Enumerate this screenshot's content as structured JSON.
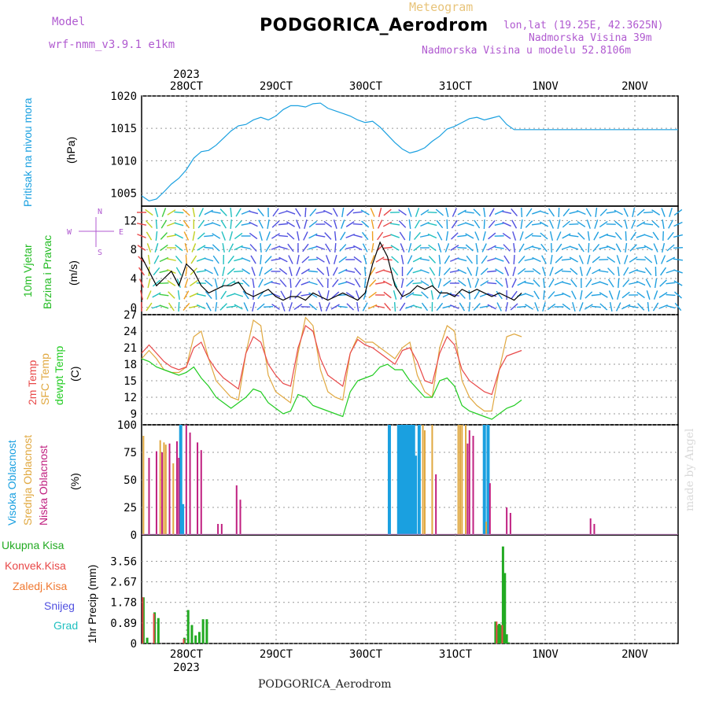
{
  "header": {
    "title": "PODGORICA_Aerodrom",
    "meteogram_label": "Meteogram",
    "model_label": "Model",
    "model_name": "wrf-nmm_v3.9.1 e1km",
    "lonlat": "lon,lat (19.25E, 42.3625N)",
    "elevation": "Nadmorska Visina 39m",
    "model_elevation": "Nadmorska Visina u modelu 52.8106m"
  },
  "footer": {
    "station": "PODGORICA_Aerodrom",
    "credit": "made by Angel"
  },
  "axis": {
    "year": "2023",
    "dates": [
      "28OCT",
      "29OCT",
      "30OCT",
      "31OCT",
      "1NOV",
      "2NOV"
    ]
  },
  "panels": {
    "pressure": {
      "label": "Pritisak na nivou mora",
      "unit": "(hPa)",
      "color": "#1aa0e0"
    },
    "wind": {
      "label1": "10m Vjetar",
      "label2": "Brzina i Pravac",
      "unit": "(m/s)",
      "color": "#22bb22",
      "compass": {
        "n": "N",
        "s": "S",
        "e": "E",
        "w": "W"
      }
    },
    "temp": {
      "label_t2": "2m Temp",
      "label_sfc": "SFC Temp",
      "label_dew": "dewpt Temp",
      "unit": "(C)",
      "colors": {
        "t2": "#e84848",
        "sfc": "#e0a840",
        "dew": "#22cc22"
      }
    },
    "cloud": {
      "label_high": "Visoka Oblacnost",
      "label_mid": "Srednja Oblacnost",
      "label_low": "Niska Oblacnost",
      "unit": "(%)",
      "colors": {
        "high": "#1aa0e0",
        "mid": "#e0a840",
        "low": "#c02080"
      }
    },
    "precip": {
      "unit": "1hr Precip (mm)",
      "legend": [
        "Ukupna Kisa",
        "Konvek.Kisa",
        "Zaledj.Kisa",
        "Snijeg",
        "Grad"
      ],
      "colors": [
        "#22aa22",
        "#e84848",
        "#f07830",
        "#5050e0",
        "#20c0c0"
      ]
    }
  },
  "chart_data": [
    {
      "type": "line",
      "panel": "pressure",
      "ylabel": "(hPa)",
      "ylim": [
        1003,
        1020
      ],
      "yticks": [
        1005,
        1010,
        1015,
        1020
      ],
      "x_hours": [
        0,
        2,
        4,
        6,
        8,
        10,
        12,
        14,
        16,
        18,
        20,
        22,
        24,
        26,
        28,
        30,
        32,
        34,
        36,
        38,
        40,
        42,
        44,
        46,
        48,
        50,
        52,
        54,
        56,
        58,
        60,
        62,
        64,
        66,
        68,
        70,
        72,
        74,
        76,
        78,
        80,
        82,
        84,
        86,
        88,
        90,
        92,
        94,
        96,
        98,
        100,
        102,
        104,
        106,
        108,
        110,
        112,
        114,
        116,
        118,
        120,
        122,
        124,
        126,
        128,
        130,
        132,
        134,
        136,
        138,
        140,
        142,
        144
      ],
      "series": [
        {
          "values": [
            1004.6,
            1003.8,
            1004.1,
            1005.2,
            1006.4,
            1007.3,
            1008.6,
            1010.4,
            1011.4,
            1011.6,
            1012.4,
            1013.5,
            1014.6,
            1015.4,
            1015.6,
            1016.3,
            1016.7,
            1016.3,
            1016.9,
            1017.9,
            1018.5,
            1018.5,
            1018.3,
            1018.8,
            1018.9,
            1018.1,
            1017.7,
            1017.3,
            1016.9,
            1016.3,
            1015.9,
            1016.1,
            1015.2,
            1014.0,
            1012.8,
            1011.8,
            1011.2,
            1011.5,
            1012.0,
            1013.0,
            1013.8,
            1014.9,
            1015.3,
            1015.9,
            1016.5,
            1016.7,
            1016.3,
            1016.6,
            1016.9,
            1015.6,
            1014.8,
            1014.8,
            1014.8,
            1014.8,
            1014.8,
            1014.8,
            1014.8,
            1014.8,
            1014.8,
            1014.8,
            1014.8,
            1014.8,
            1014.8,
            1014.8,
            1014.8,
            1014.8,
            1014.8,
            1014.8,
            1014.8,
            1014.8,
            1014.8,
            1014.8,
            1014.8
          ]
        }
      ]
    },
    {
      "type": "line",
      "panel": "wind",
      "ylabel": "(m/s)",
      "ylim": [
        -1,
        14
      ],
      "yticks": [
        0,
        4,
        8,
        12
      ],
      "x_hours": [
        0,
        2,
        4,
        6,
        8,
        10,
        12,
        14,
        16,
        18,
        20,
        22,
        24,
        26,
        28,
        30,
        32,
        34,
        36,
        38,
        40,
        42,
        44,
        46,
        48,
        50,
        52,
        54,
        56,
        58,
        60,
        62,
        64,
        66,
        68,
        70,
        72,
        74,
        76,
        78,
        80,
        82,
        84,
        86,
        88,
        90,
        92,
        94,
        96,
        98,
        100,
        102
      ],
      "series": [
        {
          "values": [
            7,
            5,
            3,
            4,
            5,
            3,
            6,
            5,
            3,
            2,
            2.5,
            3,
            3,
            3.5,
            2,
            1.5,
            2,
            2.5,
            1.5,
            1,
            1.5,
            1.5,
            1,
            2,
            1.5,
            1,
            1.5,
            2,
            1.5,
            1,
            2,
            6,
            9,
            7,
            3,
            1.5,
            2,
            3,
            2.5,
            3,
            2,
            2,
            1.5,
            2.5,
            2,
            2.5,
            2,
            1.5,
            2,
            1.5,
            1,
            2
          ]
        }
      ]
    },
    {
      "type": "line",
      "panel": "temp",
      "ylabel": "(C)",
      "ylim": [
        7,
        27
      ],
      "yticks": [
        9,
        12,
        15,
        18,
        21,
        24,
        27
      ],
      "x_hours": [
        0,
        2,
        4,
        6,
        8,
        10,
        12,
        14,
        16,
        18,
        20,
        22,
        24,
        26,
        28,
        30,
        32,
        34,
        36,
        38,
        40,
        42,
        44,
        46,
        48,
        50,
        52,
        54,
        56,
        58,
        60,
        62,
        64,
        66,
        68,
        70,
        72,
        74,
        76,
        78,
        80,
        82,
        84,
        86,
        88,
        90,
        92,
        94,
        96,
        98,
        100,
        102
      ],
      "series": [
        {
          "name": "2m Temp",
          "values": [
            20,
            21.5,
            20,
            18.5,
            17.5,
            17,
            17.5,
            21,
            22,
            19,
            17,
            15.5,
            14.5,
            13.5,
            20,
            23,
            22,
            18,
            16,
            14.5,
            14,
            21,
            25,
            24,
            19,
            16,
            15,
            14,
            20,
            22.5,
            21.5,
            21,
            20,
            19,
            18,
            20.5,
            21,
            18.5,
            15,
            14.5,
            20,
            23,
            21.5,
            17,
            15,
            14,
            13,
            12.5,
            17,
            19.5,
            20,
            20.5
          ]
        },
        {
          "name": "SFC Temp",
          "values": [
            19,
            20.5,
            19,
            17,
            16.5,
            16.5,
            17.5,
            23,
            24,
            19,
            15,
            13.5,
            12,
            11.5,
            20,
            26,
            25,
            16,
            13,
            12,
            11,
            20,
            26.5,
            25,
            17,
            13,
            12,
            11.5,
            20,
            23,
            22,
            22,
            21,
            20,
            19,
            21,
            22,
            16,
            13,
            12,
            21,
            25,
            24,
            15,
            12,
            10.5,
            9.5,
            9.5,
            17,
            23,
            23.5,
            23
          ]
        },
        {
          "name": "dewpt Temp",
          "values": [
            19,
            18.5,
            17.5,
            17,
            16.5,
            16,
            16.5,
            17.5,
            15.5,
            14,
            12,
            11,
            10,
            11,
            12,
            13.5,
            13,
            11,
            10,
            9,
            9.5,
            12.5,
            12,
            10.5,
            10,
            9.5,
            9,
            8.5,
            13,
            15,
            15.5,
            16,
            17.5,
            18,
            17,
            17,
            15,
            13.5,
            12,
            12,
            15,
            15.5,
            14,
            10.5,
            9.5,
            9,
            8.5,
            8,
            9,
            10,
            10.5,
            11.5
          ]
        }
      ]
    },
    {
      "type": "bar",
      "panel": "cloud",
      "ylabel": "(%)",
      "ylim": [
        0,
        100
      ],
      "yticks": [
        0,
        25,
        50,
        75,
        100
      ],
      "series": [
        {
          "name": "Visoka Oblacnost",
          "x_hours": [
            10.5,
            11,
            66.5,
            69,
            69.5,
            70,
            70.5,
            71,
            71.5,
            72,
            72.5,
            73,
            73.5,
            74.5,
            92,
            93
          ],
          "values": [
            100,
            28,
            100,
            100,
            100,
            100,
            100,
            100,
            100,
            100,
            100,
            100,
            72,
            100,
            100,
            100
          ]
        },
        {
          "name": "Srednja Oblacnost",
          "x_hours": [
            0.5,
            5,
            6,
            6.5,
            8.5,
            75.5,
            76,
            78,
            85,
            85.5,
            86,
            87,
            92.5
          ],
          "values": [
            90,
            86,
            84,
            82,
            65,
            100,
            95,
            100,
            100,
            100,
            100,
            100,
            12
          ]
        },
        {
          "name": "Niska Oblacnost",
          "x_hours": [
            2,
            4,
            5.5,
            7.5,
            9.5,
            10,
            12,
            13,
            15,
            16,
            20.5,
            21.5,
            25.5,
            26.5,
            79,
            87.5,
            88,
            89,
            93.5,
            98,
            99,
            120.5,
            121.5
          ],
          "values": [
            70,
            76,
            75,
            83,
            85,
            70,
            100,
            93,
            84,
            77,
            10,
            10,
            45,
            32,
            55,
            83,
            95,
            90,
            47,
            25,
            20,
            15,
            10
          ]
        }
      ]
    },
    {
      "type": "bar",
      "panel": "precip",
      "ylabel": "1hr Precip (mm)",
      "ylim": [
        0,
        4.7
      ],
      "yticks": [
        0,
        0.89,
        1.78,
        2.67,
        3.56
      ],
      "series": [
        {
          "name": "Ukupna Kisa",
          "x_hours": [
            0.5,
            1.5,
            3.5,
            4.5,
            11.5,
            12.5,
            13.5,
            14.5,
            15.5,
            16.5,
            17.5,
            95,
            95.5,
            96,
            96.5,
            97,
            97.5,
            98,
            98.5
          ],
          "values": [
            2.0,
            0.25,
            1.35,
            1.1,
            0.25,
            1.45,
            0.8,
            0.35,
            0.5,
            1.05,
            1.05,
            0.95,
            0.8,
            0.85,
            0.8,
            4.2,
            3.05,
            0.4,
            0.05
          ]
        },
        {
          "name": "Konvek.Kisa",
          "x_hours": [
            0.3,
            3.3,
            11.3,
            95.3,
            96.8
          ],
          "values": [
            2.0,
            1.3,
            0.2,
            0.95,
            0.8
          ]
        }
      ]
    }
  ]
}
